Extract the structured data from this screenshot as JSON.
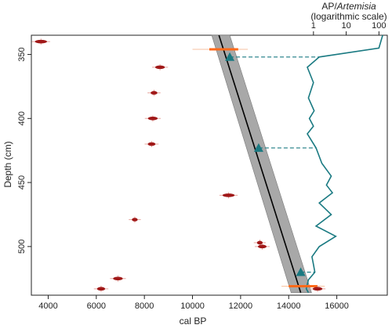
{
  "chart_data": {
    "type": "scatter",
    "xlabel": "cal BP",
    "ylabel": "Depth (cm)",
    "top_axis_label_prefix": "AP/",
    "top_axis_label_italic": "Artemisia",
    "top_axis_sublabel": "(logarithmic scale)",
    "xlim": [
      3300,
      18100
    ],
    "ylim": [
      538,
      335
    ],
    "x_ticks": [
      4000,
      6000,
      8000,
      10000,
      12000,
      14000,
      16000
    ],
    "y_ticks": [
      350,
      400,
      450,
      500
    ],
    "top_ticks": [
      {
        "value": 1,
        "label": "1"
      },
      {
        "value": 10,
        "label": "10"
      },
      {
        "value": 100,
        "label": "100"
      }
    ],
    "top_axis_range": [
      0.3,
      180
    ],
    "samples": [
      {
        "x": 3700,
        "y": 340,
        "err": 250
      },
      {
        "x": 8650,
        "y": 360,
        "err": 200
      },
      {
        "x": 8400,
        "y": 380,
        "err": 140
      },
      {
        "x": 8350,
        "y": 400,
        "err": 200
      },
      {
        "x": 8300,
        "y": 420,
        "err": 160
      },
      {
        "x": 11500,
        "y": 460,
        "err": 250
      },
      {
        "x": 7600,
        "y": 479,
        "err": 120
      },
      {
        "x": 12800,
        "y": 497,
        "err": 120
      },
      {
        "x": 12900,
        "y": 500,
        "err": 180
      },
      {
        "x": 6900,
        "y": 525,
        "err": 200
      },
      {
        "x": 6200,
        "y": 533,
        "err": 170
      },
      {
        "x": 15200,
        "y": 533,
        "err": 200
      }
    ],
    "reject_bars": [
      {
        "x": 11300,
        "y": 346,
        "x_from": 10000,
        "x_to": 12300
      },
      {
        "x": 14600,
        "y": 531,
        "x_from": 13700,
        "x_to": 15500
      }
    ],
    "age_model": {
      "line": [
        {
          "x": 11100,
          "y": 335
        },
        {
          "x": 14500,
          "y": 536
        }
      ],
      "band_left": [
        {
          "x": 10800,
          "y": 335
        },
        {
          "x": 14100,
          "y": 536
        }
      ],
      "band_right": [
        {
          "x": 11550,
          "y": 335
        },
        {
          "x": 14950,
          "y": 536
        }
      ]
    },
    "tiepoints": [
      {
        "x": 11550,
        "y": 352,
        "ratio": 1.5
      },
      {
        "x": 12750,
        "y": 423,
        "ratio": 1.2
      },
      {
        "x": 14500,
        "y": 520,
        "ratio": 1.1
      }
    ],
    "ap_artemisia": [
      {
        "ratio": 130,
        "y": 335
      },
      {
        "ratio": 100,
        "y": 345
      },
      {
        "ratio": 1.5,
        "y": 352
      },
      {
        "ratio": 0.65,
        "y": 360
      },
      {
        "ratio": 1.0,
        "y": 372
      },
      {
        "ratio": 0.7,
        "y": 384
      },
      {
        "ratio": 1.05,
        "y": 394
      },
      {
        "ratio": 0.75,
        "y": 400
      },
      {
        "ratio": 1.0,
        "y": 406
      },
      {
        "ratio": 0.65,
        "y": 412
      },
      {
        "ratio": 1.2,
        "y": 423
      },
      {
        "ratio": 1.8,
        "y": 435
      },
      {
        "ratio": 3.5,
        "y": 445
      },
      {
        "ratio": 2.5,
        "y": 452
      },
      {
        "ratio": 3.8,
        "y": 458
      },
      {
        "ratio": 1.5,
        "y": 466
      },
      {
        "ratio": 3.5,
        "y": 475
      },
      {
        "ratio": 1.2,
        "y": 484
      },
      {
        "ratio": 4.8,
        "y": 492
      },
      {
        "ratio": 1.5,
        "y": 500
      },
      {
        "ratio": 0.9,
        "y": 508
      },
      {
        "ratio": 1.0,
        "y": 514
      },
      {
        "ratio": 1.1,
        "y": 520
      },
      {
        "ratio": 0.7,
        "y": 526
      },
      {
        "ratio": 0.6,
        "y": 533
      },
      {
        "ratio": 0.7,
        "y": 536
      }
    ],
    "colors": {
      "sample": "#a01818",
      "sample_err": "#e8a8a0",
      "reject": "#ff6a1a",
      "model_line": "#000000",
      "band": "#a8a8a8",
      "teal": "#1a7a82",
      "axis": "#222222"
    },
    "grid": false,
    "legend": "none"
  }
}
